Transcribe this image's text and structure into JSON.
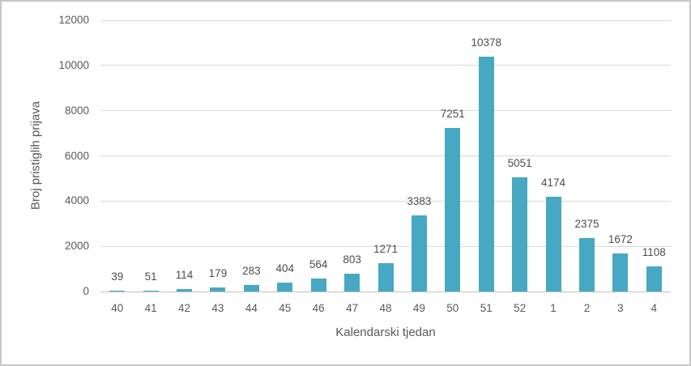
{
  "chart_data": {
    "type": "bar",
    "title": "",
    "xlabel": "Kalendarski tjedan",
    "ylabel": "Broj pristiglih prijava",
    "categories": [
      "40",
      "41",
      "42",
      "43",
      "44",
      "45",
      "46",
      "47",
      "48",
      "49",
      "50",
      "51",
      "52",
      "1",
      "2",
      "3",
      "4"
    ],
    "values": [
      39,
      51,
      114,
      179,
      283,
      404,
      564,
      803,
      1271,
      3383,
      7251,
      10378,
      5051,
      4174,
      2375,
      1672,
      1108
    ],
    "data_labels_shown": true,
    "ylim": [
      0,
      12000
    ],
    "yticks": [
      0,
      2000,
      4000,
      6000,
      8000,
      10000,
      12000
    ],
    "grid": true,
    "legend_position": "none",
    "colors": {
      "bar": "#47a8c4",
      "gridline": "#d9d9d9",
      "axis_line": "#bfbfbf",
      "tick_text": "#595959",
      "value_label_text": "#4d4d4d",
      "background": "#ffffff",
      "border": "#c7c7c7"
    }
  }
}
